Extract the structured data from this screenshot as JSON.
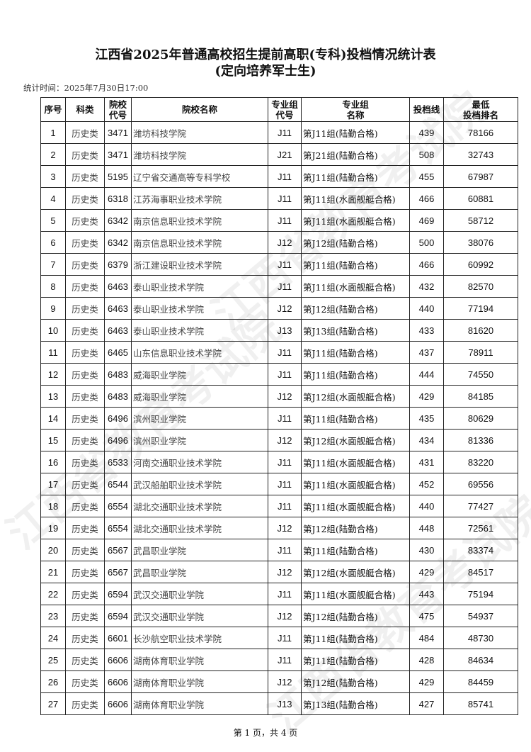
{
  "title": "江西省2025年普通高校招生提前高职(专科)投档情况统计表",
  "subtitle": "(定向培养军士生)",
  "stat_time": "统计时间：2025年7月30日17:00",
  "headers": [
    "序号",
    "科类",
    "院校\n代号",
    "院校名称",
    "专业组\n代号",
    "专业组\n名称",
    "投档线",
    "最低\n投档排名"
  ],
  "rows": [
    [
      "1",
      "历史类",
      "3471",
      "潍坊科技学院",
      "J11",
      "第J11组(陆勤合格)",
      "439",
      "78166"
    ],
    [
      "2",
      "历史类",
      "3471",
      "潍坊科技学院",
      "J21",
      "第J21组(陆勤合格)",
      "508",
      "32743"
    ],
    [
      "3",
      "历史类",
      "5195",
      "辽宁省交通高等专科学校",
      "J11",
      "第J11组(陆勤合格)",
      "455",
      "67987"
    ],
    [
      "4",
      "历史类",
      "6318",
      "江苏海事职业技术学院",
      "J11",
      "第J11组(水面舰艇合格)",
      "466",
      "60881"
    ],
    [
      "5",
      "历史类",
      "6342",
      "南京信息职业技术学院",
      "J11",
      "第J11组(水面舰艇合格)",
      "469",
      "58712"
    ],
    [
      "6",
      "历史类",
      "6342",
      "南京信息职业技术学院",
      "J12",
      "第J12组(陆勤合格)",
      "500",
      "38076"
    ],
    [
      "7",
      "历史类",
      "6379",
      "浙江建设职业技术学院",
      "J11",
      "第J11组(陆勤合格)",
      "466",
      "60992"
    ],
    [
      "8",
      "历史类",
      "6463",
      "泰山职业技术学院",
      "J11",
      "第J11组(水面舰艇合格)",
      "432",
      "82570"
    ],
    [
      "9",
      "历史类",
      "6463",
      "泰山职业技术学院",
      "J12",
      "第J12组(陆勤合格)",
      "440",
      "77194"
    ],
    [
      "10",
      "历史类",
      "6463",
      "泰山职业技术学院",
      "J13",
      "第J13组(陆勤合格)",
      "433",
      "81620"
    ],
    [
      "11",
      "历史类",
      "6465",
      "山东信息职业技术学院",
      "J11",
      "第J11组(陆勤合格)",
      "437",
      "78911"
    ],
    [
      "12",
      "历史类",
      "6483",
      "威海职业学院",
      "J11",
      "第J11组(陆勤合格)",
      "444",
      "74550"
    ],
    [
      "13",
      "历史类",
      "6483",
      "威海职业学院",
      "J12",
      "第J12组(水面舰艇合格)",
      "429",
      "84185"
    ],
    [
      "14",
      "历史类",
      "6496",
      "滨州职业学院",
      "J11",
      "第J11组(陆勤合格)",
      "435",
      "80629"
    ],
    [
      "15",
      "历史类",
      "6496",
      "滨州职业学院",
      "J12",
      "第J12组(水面舰艇合格)",
      "434",
      "81336"
    ],
    [
      "16",
      "历史类",
      "6533",
      "河南交通职业技术学院",
      "J11",
      "第J11组(水面舰艇合格)",
      "431",
      "83220"
    ],
    [
      "17",
      "历史类",
      "6544",
      "武汉船舶职业技术学院",
      "J11",
      "第J11组(水面舰艇合格)",
      "452",
      "69556"
    ],
    [
      "18",
      "历史类",
      "6554",
      "湖北交通职业技术学院",
      "J11",
      "第J11组(水面舰艇合格)",
      "440",
      "77427"
    ],
    [
      "19",
      "历史类",
      "6554",
      "湖北交通职业技术学院",
      "J12",
      "第J12组(陆勤合格)",
      "448",
      "72561"
    ],
    [
      "20",
      "历史类",
      "6567",
      "武昌职业学院",
      "J11",
      "第J11组(陆勤合格)",
      "430",
      "83374"
    ],
    [
      "21",
      "历史类",
      "6567",
      "武昌职业学院",
      "J12",
      "第J12组(水面舰艇合格)",
      "429",
      "84517"
    ],
    [
      "22",
      "历史类",
      "6594",
      "武汉交通职业学院",
      "J11",
      "第J11组(水面舰艇合格)",
      "443",
      "75194"
    ],
    [
      "23",
      "历史类",
      "6594",
      "武汉交通职业学院",
      "J12",
      "第J12组(陆勤合格)",
      "475",
      "54937"
    ],
    [
      "24",
      "历史类",
      "6601",
      "长沙航空职业技术学院",
      "J11",
      "第J11组(陆勤合格)",
      "484",
      "48730"
    ],
    [
      "25",
      "历史类",
      "6606",
      "湖南体育职业学院",
      "J11",
      "第J11组(陆勤合格)",
      "428",
      "84634"
    ],
    [
      "26",
      "历史类",
      "6606",
      "湖南体育职业学院",
      "J12",
      "第J12组(陆勤合格)",
      "429",
      "84459"
    ],
    [
      "27",
      "历史类",
      "6606",
      "湖南体育职业学院",
      "J13",
      "第J13组(陆勤合格)",
      "427",
      "85741"
    ]
  ],
  "footer": "第 1 页，共 4 页",
  "watermark": "江西省教育考试院"
}
